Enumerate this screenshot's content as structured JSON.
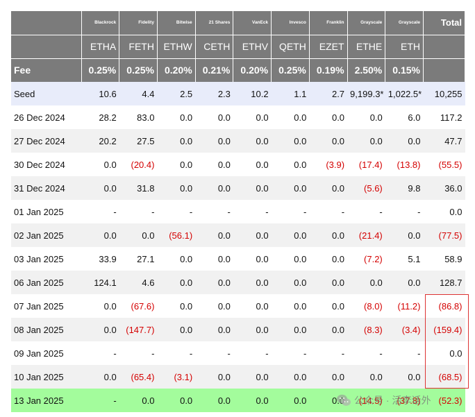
{
  "header": {
    "issuers": [
      "Blackrock",
      "Fidelity",
      "Bitwise",
      "21 Shares",
      "VanEck",
      "Invesco",
      "Franklin",
      "Grayscale",
      "Grayscale"
    ],
    "total_label": "Total",
    "tickers": [
      "ETHA",
      "FETH",
      "ETHW",
      "CETH",
      "ETHV",
      "QETH",
      "EZET",
      "ETHE",
      "ETH"
    ],
    "fee_label": "Fee",
    "fees": [
      "0.25%",
      "0.25%",
      "0.20%",
      "0.21%",
      "0.20%",
      "0.25%",
      "0.19%",
      "2.50%",
      "0.15%"
    ]
  },
  "rows": [
    {
      "date": "Seed",
      "values": [
        "10.6",
        "4.4",
        "2.5",
        "2.3",
        "10.2",
        "1.1",
        "2.7",
        "9,199.3*",
        "1,022.5*"
      ],
      "total": "10,255"
    },
    {
      "date": "26 Dec 2024",
      "values": [
        "28.2",
        "83.0",
        "0.0",
        "0.0",
        "0.0",
        "0.0",
        "0.0",
        "0.0",
        "6.0"
      ],
      "total": "117.2"
    },
    {
      "date": "27 Dec 2024",
      "values": [
        "20.2",
        "27.5",
        "0.0",
        "0.0",
        "0.0",
        "0.0",
        "0.0",
        "0.0",
        "0.0"
      ],
      "total": "47.7"
    },
    {
      "date": "30 Dec 2024",
      "values": [
        "0.0",
        "(20.4)",
        "0.0",
        "0.0",
        "0.0",
        "0.0",
        "(3.9)",
        "(17.4)",
        "(13.8)"
      ],
      "total": "(55.5)"
    },
    {
      "date": "31 Dec 2024",
      "values": [
        "0.0",
        "31.8",
        "0.0",
        "0.0",
        "0.0",
        "0.0",
        "0.0",
        "(5.6)",
        "9.8"
      ],
      "total": "36.0"
    },
    {
      "date": "01 Jan 2025",
      "values": [
        "-",
        "-",
        "-",
        "-",
        "-",
        "-",
        "-",
        "-",
        "-"
      ],
      "total": "0.0"
    },
    {
      "date": "02 Jan 2025",
      "values": [
        "0.0",
        "0.0",
        "(56.1)",
        "0.0",
        "0.0",
        "0.0",
        "0.0",
        "(21.4)",
        "0.0"
      ],
      "total": "(77.5)"
    },
    {
      "date": "03 Jan 2025",
      "values": [
        "33.9",
        "27.1",
        "0.0",
        "0.0",
        "0.0",
        "0.0",
        "0.0",
        "(7.2)",
        "5.1"
      ],
      "total": "58.9"
    },
    {
      "date": "06 Jan 2025",
      "values": [
        "124.1",
        "4.6",
        "0.0",
        "0.0",
        "0.0",
        "0.0",
        "0.0",
        "0.0",
        "0.0"
      ],
      "total": "128.7"
    },
    {
      "date": "07 Jan 2025",
      "values": [
        "0.0",
        "(67.6)",
        "0.0",
        "0.0",
        "0.0",
        "0.0",
        "0.0",
        "(8.0)",
        "(11.2)"
      ],
      "total": "(86.8)"
    },
    {
      "date": "08 Jan 2025",
      "values": [
        "0.0",
        "(147.7)",
        "0.0",
        "0.0",
        "0.0",
        "0.0",
        "0.0",
        "(8.3)",
        "(3.4)"
      ],
      "total": "(159.4)"
    },
    {
      "date": "09 Jan 2025",
      "values": [
        "-",
        "-",
        "-",
        "-",
        "-",
        "-",
        "-",
        "-",
        "-"
      ],
      "total": "0.0"
    },
    {
      "date": "10 Jan 2025",
      "values": [
        "0.0",
        "(65.4)",
        "(3.1)",
        "0.0",
        "0.0",
        "0.0",
        "0.0",
        "0.0",
        "0.0"
      ],
      "total": "(68.5)"
    },
    {
      "date": "13 Jan 2025",
      "values": [
        "-",
        "0.0",
        "0.0",
        "0.0",
        "0.0",
        "0.0",
        "0.0",
        "(14.5)",
        "(37.8)"
      ],
      "total": "(52.3)",
      "highlight": true
    }
  ],
  "watermark": {
    "text": "公众号 · 活李话外",
    "icon": "wechat-icon"
  },
  "colors": {
    "header_bg": "#7b7b7b",
    "negative": "#d40000",
    "seed_bg": "#e8ecfa",
    "highlight_bg": "#a3fc9c",
    "box": "#d33333"
  }
}
